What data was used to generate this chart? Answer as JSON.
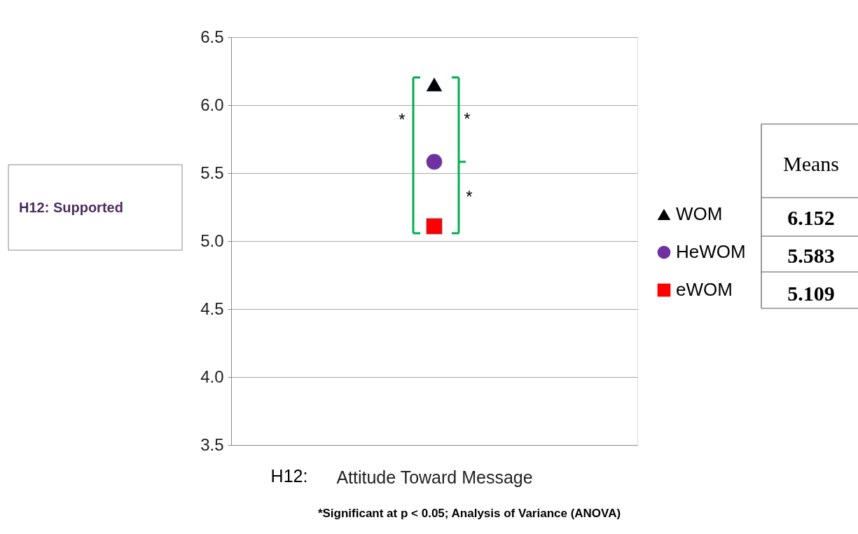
{
  "chart_data": {
    "type": "scatter",
    "categories": [
      "Attitude Toward Message"
    ],
    "series": [
      {
        "name": "WOM",
        "color": "#000000",
        "marker": "triangle",
        "values": [
          6.152
        ]
      },
      {
        "name": "HeWOM",
        "color": "#7030a0",
        "marker": "circle",
        "values": [
          5.583
        ]
      },
      {
        "name": "eWOM",
        "color": "#ff0000",
        "marker": "square",
        "values": [
          5.109
        ]
      }
    ],
    "ylim": [
      3.5,
      6.5
    ],
    "yticks": [
      3.5,
      {
        "value": 4,
        "label": "4.0"
      },
      4.5,
      {
        "value": 5,
        "label": "5.0"
      },
      5.5,
      {
        "value": 6,
        "label": "6.0"
      },
      6.5
    ],
    "grid": "y",
    "legend": "right",
    "annotations": [
      "H12: Supported",
      "H12:",
      "Means",
      "*",
      "*",
      "*",
      "*Significant at p < 0.05; Analysis of Variance (ANOVA)",
      "6.152",
      "5.583",
      "5.109"
    ]
  }
}
